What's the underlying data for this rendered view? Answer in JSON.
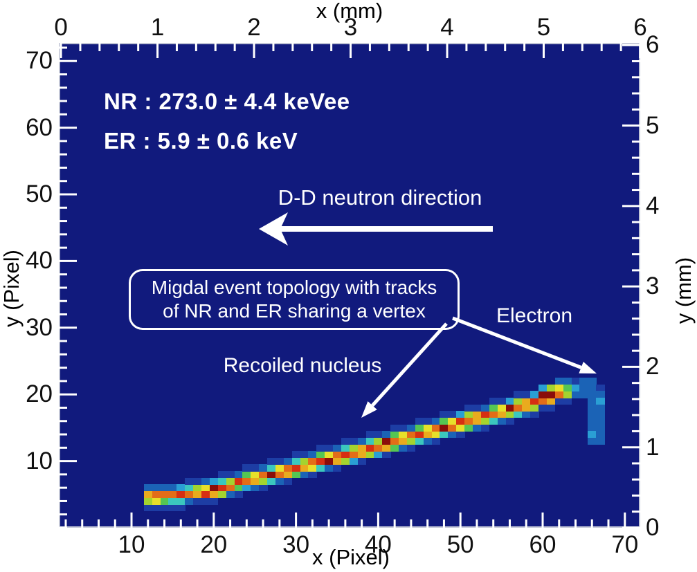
{
  "annotations": {
    "nr_energy": "NR : 273.0 ± 4.4 keVee",
    "er_energy": "ER : 5.9 ± 0.6 keV",
    "neutron_direction": "D-D neutron direction",
    "migdal_box_line1": "Migdal event topology with tracks",
    "migdal_box_line2": "of NR and ER sharing a vertex",
    "recoiled_nucleus": "Recoiled nucleus",
    "electron": "Electron"
  },
  "chart_data": {
    "type": "heatmap",
    "description": "2D CMOS-pixel image of a Migdal candidate event: a bright nuclear-recoil (NR) track and a faint electron-recoil (ER) track sharing a vertex",
    "background_color": "#111a7d",
    "frame_color": "#c2c6d6",
    "tick_color": "#ffffff",
    "axes": {
      "top": {
        "label": "x (mm)",
        "ticks": [
          0,
          1,
          2,
          3,
          4,
          5,
          6
        ],
        "range": [
          -0.022,
          6.0
        ],
        "minor_step": 0.2
      },
      "bottom": {
        "label": "x (Pixel)",
        "ticks": [
          10,
          20,
          30,
          40,
          50,
          60,
          70
        ],
        "range": [
          1.16,
          71.87
        ],
        "minor_step": 2
      },
      "left": {
        "label": "y (Pixel)",
        "ticks": [
          10,
          20,
          30,
          40,
          50,
          60,
          70
        ],
        "range": [
          0,
          72.72
        ],
        "minor_step": 2
      },
      "right": {
        "label": "y (mm)",
        "ticks": [
          0,
          1,
          2,
          3,
          4,
          5,
          6
        ],
        "range": [
          0,
          6.028
        ],
        "minor_step": 0.2
      }
    },
    "palette": [
      "#1d3da4",
      "#1b63b6",
      "#2a9fd4",
      "#3bc7be",
      "#55c653",
      "#a4d32f",
      "#e7e02a",
      "#e9ab1e",
      "#e36d18",
      "#d62f12",
      "#8a0d0a"
    ],
    "nr_track_bins": [
      [
        12,
        3,
        1
      ],
      [
        12,
        4,
        6
      ],
      [
        12,
        5,
        8
      ],
      [
        12,
        6,
        2
      ],
      [
        13,
        3,
        1
      ],
      [
        13,
        4,
        7
      ],
      [
        13,
        5,
        9
      ],
      [
        13,
        6,
        2
      ],
      [
        14,
        3,
        1
      ],
      [
        14,
        4,
        5
      ],
      [
        14,
        5,
        9
      ],
      [
        14,
        6,
        2
      ],
      [
        15,
        3,
        1
      ],
      [
        15,
        4,
        4
      ],
      [
        15,
        5,
        9
      ],
      [
        15,
        6,
        2
      ],
      [
        16,
        3,
        1
      ],
      [
        16,
        4,
        4
      ],
      [
        16,
        5,
        10
      ],
      [
        16,
        6,
        3
      ],
      [
        17,
        4,
        2
      ],
      [
        17,
        5,
        9
      ],
      [
        17,
        6,
        4
      ],
      [
        17,
        7,
        1
      ],
      [
        18,
        4,
        1
      ],
      [
        18,
        5,
        8
      ],
      [
        18,
        6,
        6
      ],
      [
        18,
        7,
        1
      ],
      [
        19,
        4,
        1
      ],
      [
        19,
        5,
        10
      ],
      [
        19,
        6,
        7
      ],
      [
        19,
        7,
        2
      ],
      [
        20,
        4,
        1
      ],
      [
        20,
        5,
        8
      ],
      [
        20,
        6,
        11
      ],
      [
        20,
        7,
        3
      ],
      [
        21,
        5,
        6
      ],
      [
        21,
        6,
        10
      ],
      [
        21,
        7,
        4
      ],
      [
        21,
        8,
        1
      ],
      [
        22,
        5,
        2
      ],
      [
        22,
        6,
        9
      ],
      [
        22,
        7,
        6
      ],
      [
        22,
        8,
        1
      ],
      [
        23,
        5,
        1
      ],
      [
        23,
        6,
        5
      ],
      [
        23,
        7,
        10
      ],
      [
        23,
        8,
        2
      ],
      [
        24,
        6,
        3
      ],
      [
        24,
        7,
        9
      ],
      [
        24,
        8,
        5
      ],
      [
        24,
        9,
        1
      ],
      [
        25,
        6,
        2
      ],
      [
        25,
        7,
        8
      ],
      [
        25,
        8,
        7
      ],
      [
        25,
        9,
        1
      ],
      [
        26,
        6,
        1
      ],
      [
        26,
        7,
        6
      ],
      [
        26,
        8,
        9
      ],
      [
        26,
        9,
        2
      ],
      [
        27,
        7,
        4
      ],
      [
        27,
        8,
        11
      ],
      [
        27,
        9,
        4
      ],
      [
        27,
        10,
        1
      ],
      [
        28,
        7,
        2
      ],
      [
        28,
        8,
        9
      ],
      [
        28,
        9,
        7
      ],
      [
        28,
        10,
        1
      ],
      [
        29,
        7,
        1
      ],
      [
        29,
        8,
        8
      ],
      [
        29,
        9,
        9
      ],
      [
        29,
        10,
        2
      ],
      [
        30,
        8,
        5
      ],
      [
        30,
        9,
        10
      ],
      [
        30,
        10,
        4
      ],
      [
        30,
        11,
        1
      ],
      [
        31,
        8,
        2
      ],
      [
        31,
        9,
        8
      ],
      [
        31,
        10,
        6
      ],
      [
        31,
        11,
        1
      ],
      [
        32,
        8,
        1
      ],
      [
        32,
        9,
        7
      ],
      [
        32,
        10,
        9
      ],
      [
        32,
        11,
        2
      ],
      [
        33,
        9,
        4
      ],
      [
        33,
        10,
        10
      ],
      [
        33,
        11,
        5
      ],
      [
        33,
        12,
        1
      ],
      [
        34,
        9,
        2
      ],
      [
        34,
        10,
        11
      ],
      [
        34,
        11,
        7
      ],
      [
        34,
        12,
        1
      ],
      [
        35,
        9,
        1
      ],
      [
        35,
        10,
        8
      ],
      [
        35,
        11,
        9
      ],
      [
        35,
        12,
        2
      ],
      [
        36,
        10,
        6
      ],
      [
        36,
        11,
        10
      ],
      [
        36,
        12,
        4
      ],
      [
        36,
        13,
        1
      ],
      [
        37,
        10,
        3
      ],
      [
        37,
        11,
        9
      ],
      [
        37,
        12,
        6
      ],
      [
        37,
        13,
        1
      ],
      [
        38,
        10,
        1
      ],
      [
        38,
        11,
        8
      ],
      [
        38,
        12,
        8
      ],
      [
        38,
        13,
        2
      ],
      [
        39,
        11,
        6
      ],
      [
        39,
        12,
        10
      ],
      [
        39,
        13,
        4
      ],
      [
        39,
        14,
        1
      ],
      [
        40,
        11,
        3
      ],
      [
        40,
        12,
        9
      ],
      [
        40,
        13,
        6
      ],
      [
        40,
        14,
        1
      ],
      [
        41,
        11,
        1
      ],
      [
        41,
        12,
        8
      ],
      [
        41,
        13,
        11
      ],
      [
        41,
        14,
        2
      ],
      [
        42,
        12,
        5
      ],
      [
        42,
        13,
        9
      ],
      [
        42,
        14,
        5
      ],
      [
        42,
        15,
        1
      ],
      [
        43,
        12,
        2
      ],
      [
        43,
        13,
        8
      ],
      [
        43,
        14,
        7
      ],
      [
        43,
        15,
        1
      ],
      [
        44,
        12,
        1
      ],
      [
        44,
        13,
        6
      ],
      [
        44,
        14,
        9
      ],
      [
        44,
        15,
        2
      ],
      [
        45,
        13,
        4
      ],
      [
        45,
        14,
        10
      ],
      [
        45,
        15,
        5
      ],
      [
        45,
        16,
        1
      ],
      [
        46,
        13,
        2
      ],
      [
        46,
        14,
        8
      ],
      [
        46,
        15,
        7
      ],
      [
        46,
        16,
        1
      ],
      [
        47,
        13,
        1
      ],
      [
        47,
        14,
        7
      ],
      [
        47,
        15,
        9
      ],
      [
        47,
        16,
        2
      ],
      [
        48,
        14,
        4
      ],
      [
        48,
        15,
        11
      ],
      [
        48,
        16,
        5
      ],
      [
        48,
        17,
        1
      ],
      [
        49,
        14,
        2
      ],
      [
        49,
        15,
        9
      ],
      [
        49,
        16,
        7
      ],
      [
        49,
        17,
        1
      ],
      [
        50,
        14,
        1
      ],
      [
        50,
        15,
        7
      ],
      [
        50,
        16,
        10
      ],
      [
        50,
        17,
        3
      ],
      [
        51,
        15,
        5
      ],
      [
        51,
        16,
        9
      ],
      [
        51,
        17,
        6
      ],
      [
        51,
        18,
        1
      ],
      [
        52,
        15,
        2
      ],
      [
        52,
        16,
        8
      ],
      [
        52,
        17,
        8
      ],
      [
        52,
        18,
        1
      ],
      [
        53,
        15,
        1
      ],
      [
        53,
        16,
        6
      ],
      [
        53,
        17,
        10
      ],
      [
        53,
        18,
        2
      ],
      [
        54,
        16,
        4
      ],
      [
        54,
        17,
        9
      ],
      [
        54,
        18,
        5
      ],
      [
        54,
        19,
        1
      ],
      [
        55,
        16,
        2
      ],
      [
        55,
        17,
        8
      ],
      [
        55,
        18,
        7
      ],
      [
        55,
        19,
        1
      ],
      [
        56,
        16,
        1
      ],
      [
        56,
        17,
        6
      ],
      [
        56,
        18,
        11
      ],
      [
        56,
        19,
        3
      ],
      [
        57,
        17,
        4
      ],
      [
        57,
        18,
        9
      ],
      [
        57,
        19,
        6
      ],
      [
        57,
        20,
        1
      ],
      [
        58,
        17,
        2
      ],
      [
        58,
        18,
        8
      ],
      [
        58,
        19,
        8
      ],
      [
        58,
        20,
        1
      ],
      [
        59,
        17,
        1
      ],
      [
        59,
        18,
        6
      ],
      [
        59,
        19,
        10
      ],
      [
        59,
        20,
        3
      ],
      [
        60,
        18,
        1
      ],
      [
        60,
        19,
        9
      ],
      [
        60,
        20,
        11
      ],
      [
        60,
        21,
        3
      ],
      [
        61,
        18,
        1
      ],
      [
        61,
        19,
        8
      ],
      [
        61,
        20,
        11
      ],
      [
        61,
        21,
        6
      ],
      [
        62,
        19,
        1
      ],
      [
        62,
        20,
        9
      ],
      [
        62,
        21,
        7
      ],
      [
        62,
        22,
        2
      ],
      [
        63,
        19,
        1
      ],
      [
        63,
        20,
        6
      ],
      [
        63,
        21,
        5
      ],
      [
        63,
        22,
        2
      ],
      [
        64,
        20,
        2
      ],
      [
        64,
        21,
        3
      ],
      [
        64,
        22,
        1
      ]
    ],
    "er_track_bins": [
      [
        65,
        22,
        2
      ],
      [
        66,
        22,
        2
      ],
      [
        65,
        21,
        2
      ],
      [
        66,
        21,
        2
      ],
      [
        67,
        21,
        1
      ],
      [
        65,
        20,
        2
      ],
      [
        66,
        20,
        2
      ],
      [
        67,
        20,
        2
      ],
      [
        66,
        19,
        2
      ],
      [
        67,
        19,
        3
      ],
      [
        66,
        18,
        2
      ],
      [
        67,
        18,
        2
      ],
      [
        66,
        17,
        2
      ],
      [
        67,
        17,
        2
      ],
      [
        66,
        16,
        2
      ],
      [
        67,
        16,
        2
      ],
      [
        66,
        15,
        2
      ],
      [
        67,
        15,
        2
      ],
      [
        66,
        14,
        3
      ],
      [
        67,
        14,
        2
      ],
      [
        66,
        13,
        2
      ],
      [
        67,
        13,
        2
      ]
    ]
  }
}
